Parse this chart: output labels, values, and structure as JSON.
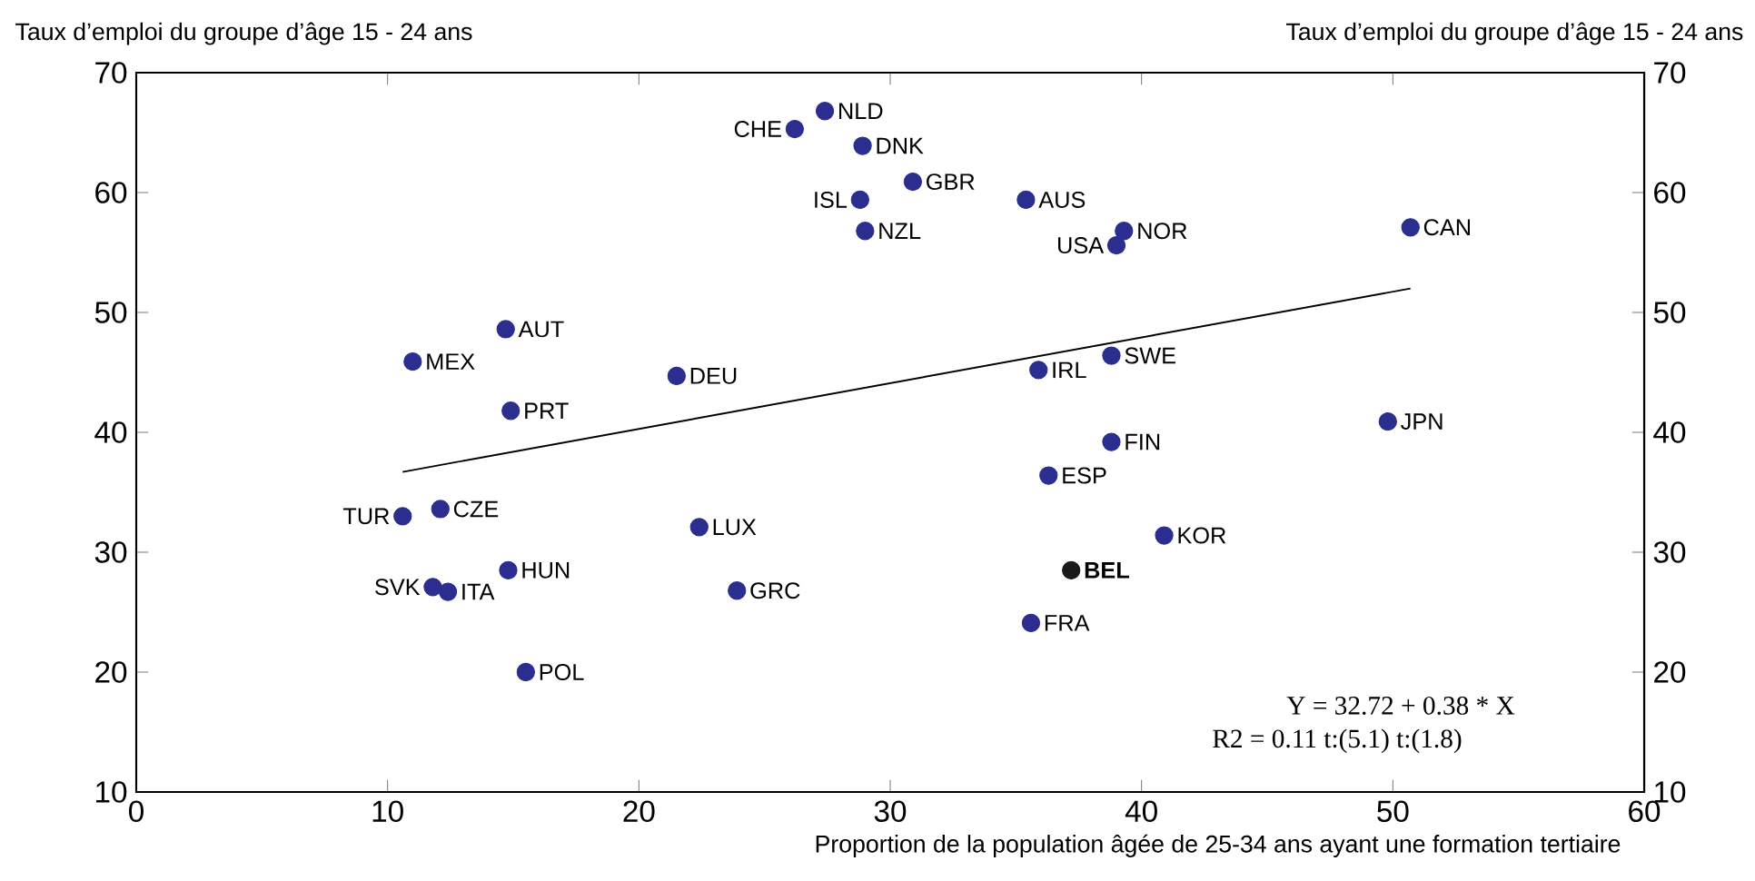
{
  "chart_data": {
    "type": "scatter",
    "ylabel": "Taux d’emploi du groupe d’âge  15 - 24 ans",
    "y2label": "Taux d’emploi du groupe d’âge  15 - 24 ans",
    "xlabel": "Proportion de la population âgée de 25-34 ans ayant une formation tertiaire",
    "annotations": [
      "Y = 32.72 +  0.38 * X",
      "R2 =  0.11    t:(5.1)    t:(1.8)"
    ],
    "xlim": [
      0,
      60
    ],
    "xticks": [
      0,
      10,
      20,
      30,
      40,
      50,
      60
    ],
    "ylim": [
      10,
      70
    ],
    "yticks": [
      10,
      20,
      30,
      40,
      50,
      60,
      70
    ],
    "y2lim": [
      10,
      70
    ],
    "y2ticks": [
      10,
      20,
      30,
      40,
      50,
      60,
      70
    ],
    "grid": false,
    "series": [
      {
        "name": "CHE",
        "marker": "circle",
        "color": "#2b2e8f",
        "x": [
          26.2
        ],
        "values": [
          65.3
        ]
      },
      {
        "name": "NLD",
        "marker": "circle",
        "color": "#2b2e8f",
        "x": [
          27.4
        ],
        "values": [
          66.8
        ]
      },
      {
        "name": "DNK",
        "marker": "circle",
        "color": "#2b2e8f",
        "x": [
          28.9
        ],
        "values": [
          63.9
        ]
      },
      {
        "name": "GBR",
        "marker": "circle",
        "color": "#2b2e8f",
        "x": [
          30.9
        ],
        "values": [
          60.9
        ]
      },
      {
        "name": "ISL",
        "marker": "circle",
        "color": "#2b2e8f",
        "x": [
          28.8
        ],
        "values": [
          59.4
        ]
      },
      {
        "name": "AUS",
        "marker": "circle",
        "color": "#2b2e8f",
        "x": [
          35.4
        ],
        "values": [
          59.4
        ]
      },
      {
        "name": "NZL",
        "marker": "circle",
        "color": "#2b2e8f",
        "x": [
          29.0
        ],
        "values": [
          56.8
        ]
      },
      {
        "name": "NOR",
        "marker": "circle",
        "color": "#2b2e8f",
        "x": [
          39.3
        ],
        "values": [
          56.8
        ]
      },
      {
        "name": "USA",
        "marker": "circle",
        "color": "#2b2e8f",
        "x": [
          39.0
        ],
        "values": [
          55.6
        ]
      },
      {
        "name": "CAN",
        "marker": "circle",
        "color": "#2b2e8f",
        "x": [
          50.7
        ],
        "values": [
          57.1
        ]
      },
      {
        "name": "AUT",
        "marker": "circle",
        "color": "#2b2e8f",
        "x": [
          14.7
        ],
        "values": [
          48.6
        ]
      },
      {
        "name": "MEX",
        "marker": "circle",
        "color": "#2b2e8f",
        "x": [
          11.0
        ],
        "values": [
          45.9
        ]
      },
      {
        "name": "DEU",
        "marker": "circle",
        "color": "#2b2e8f",
        "x": [
          21.5
        ],
        "values": [
          44.7
        ]
      },
      {
        "name": "IRL",
        "marker": "circle",
        "color": "#2b2e8f",
        "x": [
          35.9
        ],
        "values": [
          45.2
        ]
      },
      {
        "name": "SWE",
        "marker": "circle",
        "color": "#2b2e8f",
        "x": [
          38.8
        ],
        "values": [
          46.4
        ]
      },
      {
        "name": "PRT",
        "marker": "circle",
        "color": "#2b2e8f",
        "x": [
          14.9
        ],
        "values": [
          41.8
        ]
      },
      {
        "name": "JPN",
        "marker": "circle",
        "color": "#2b2e8f",
        "x": [
          49.8
        ],
        "values": [
          40.9
        ]
      },
      {
        "name": "FIN",
        "marker": "circle",
        "color": "#2b2e8f",
        "x": [
          38.8
        ],
        "values": [
          39.2
        ]
      },
      {
        "name": "ESP",
        "marker": "circle",
        "color": "#2b2e8f",
        "x": [
          36.3
        ],
        "values": [
          36.4
        ]
      },
      {
        "name": "TUR",
        "marker": "circle",
        "color": "#2b2e8f",
        "x": [
          10.6
        ],
        "values": [
          33.0
        ]
      },
      {
        "name": "CZE",
        "marker": "circle",
        "color": "#2b2e8f",
        "x": [
          12.1
        ],
        "values": [
          33.6
        ]
      },
      {
        "name": "LUX",
        "marker": "circle",
        "color": "#2b2e8f",
        "x": [
          22.4
        ],
        "values": [
          32.1
        ]
      },
      {
        "name": "KOR",
        "marker": "circle",
        "color": "#2b2e8f",
        "x": [
          40.9
        ],
        "values": [
          31.4
        ]
      },
      {
        "name": "**BEL**",
        "marker": "circle",
        "color": "#1a1a1a",
        "x": [
          37.2
        ],
        "values": [
          28.5
        ]
      },
      {
        "name": "HUN",
        "marker": "circle",
        "color": "#2b2e8f",
        "x": [
          14.8
        ],
        "values": [
          28.5
        ]
      },
      {
        "name": "SVK",
        "marker": "circle",
        "color": "#2b2e8f",
        "x": [
          11.8
        ],
        "values": [
          27.1
        ]
      },
      {
        "name": "ITA",
        "marker": "circle",
        "color": "#2b2e8f",
        "x": [
          12.4
        ],
        "values": [
          26.7
        ]
      },
      {
        "name": "GRC",
        "marker": "circle",
        "color": "#2b2e8f",
        "x": [
          23.9
        ],
        "values": [
          26.8
        ]
      },
      {
        "name": "FRA",
        "marker": "circle",
        "color": "#2b2e8f",
        "x": [
          35.6
        ],
        "values": [
          24.1
        ]
      },
      {
        "name": "POL",
        "marker": "circle",
        "color": "#2b2e8f",
        "x": [
          15.5
        ],
        "values": [
          20.0
        ]
      },
      {
        "type": "line",
        "color": "#000000",
        "x": [
          10.6,
          50.7
        ],
        "values": [
          36.7,
          52.0
        ]
      }
    ]
  }
}
